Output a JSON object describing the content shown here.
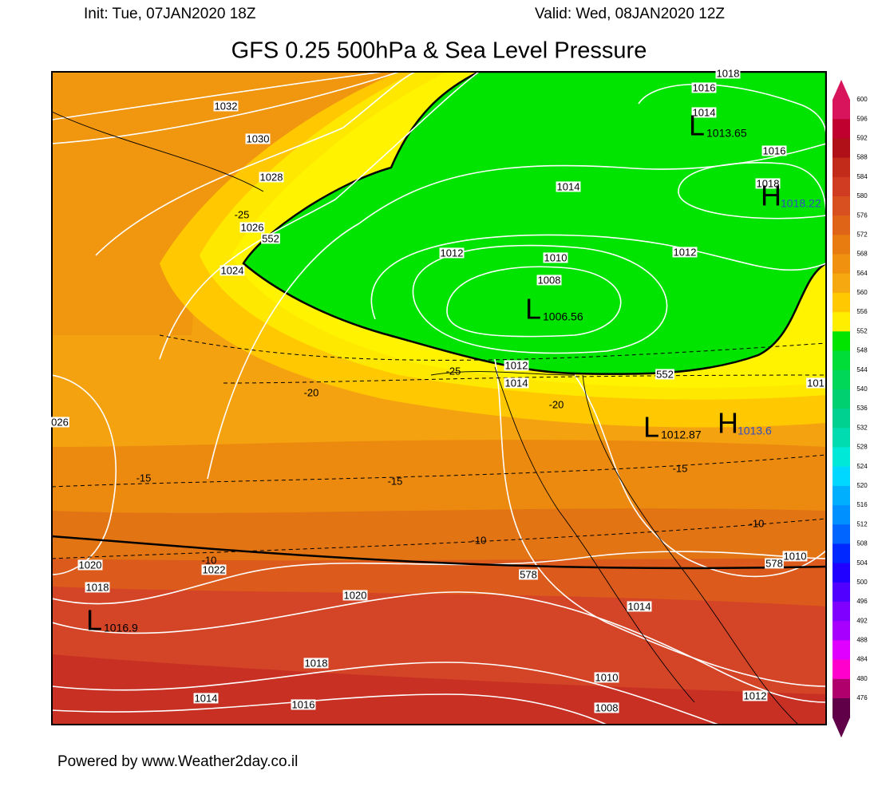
{
  "header": {
    "init": "Init: Tue, 07JAN2020 18Z",
    "valid": "Valid: Wed, 08JAN2020 12Z",
    "title": "GFS 0.25 500hPa & Sea Level Pressure"
  },
  "footer": "Powered by www.Weather2day.co.il",
  "colorbar": {
    "ticks": [
      600,
      596,
      592,
      588,
      584,
      580,
      576,
      572,
      568,
      564,
      560,
      556,
      552,
      548,
      544,
      540,
      536,
      532,
      528,
      524,
      520,
      516,
      512,
      508,
      504,
      500,
      496,
      492,
      488,
      484,
      480,
      476
    ],
    "colors": [
      "#d8145c",
      "#c0002e",
      "#b01018",
      "#c22a1a",
      "#d03c22",
      "#d85020",
      "#e06418",
      "#e87c10",
      "#f09210",
      "#f6a810",
      "#ffc800",
      "#ffee00",
      "#00e400",
      "#00dc38",
      "#00d658",
      "#00d070",
      "#00d090",
      "#00dcb0",
      "#00e8d8",
      "#00d8ff",
      "#00b0ff",
      "#0090ff",
      "#0064ff",
      "#0028ff",
      "#2000ff",
      "#5000ff",
      "#8000ff",
      "#a800ff",
      "#e000ff",
      "#ff00cc",
      "#b0006c",
      "#600048"
    ]
  },
  "map": {
    "isobar_labels": [
      "1018",
      "1016",
      "1014",
      "1016",
      "1018",
      "1014",
      "1032",
      "1030",
      "1028",
      "1026",
      "1024",
      "1012",
      "1010",
      "1012",
      "1008",
      "1012",
      "1014",
      "101",
      "026",
      "1020",
      "1022",
      "1018",
      "1020",
      "1014",
      "1010",
      "1018",
      "1010",
      "1014",
      "1016",
      "1008",
      "1012"
    ],
    "thickness_labels": [
      "552",
      "552",
      "578",
      "578"
    ],
    "temperature_labels": [
      "-25",
      "-25",
      "-20",
      "-20",
      "-15",
      "-15",
      "-15",
      "-10",
      "-10",
      "-10"
    ],
    "centers": [
      {
        "symbol": "L",
        "value": "1013.65"
      },
      {
        "symbol": "H",
        "value": "1018.22"
      },
      {
        "symbol": "L",
        "value": "1006.56"
      },
      {
        "symbol": "L",
        "value": "1012.87"
      },
      {
        "symbol": "H",
        "value": "1013.6"
      },
      {
        "symbol": "L",
        "value": "1016.9"
      }
    ]
  }
}
